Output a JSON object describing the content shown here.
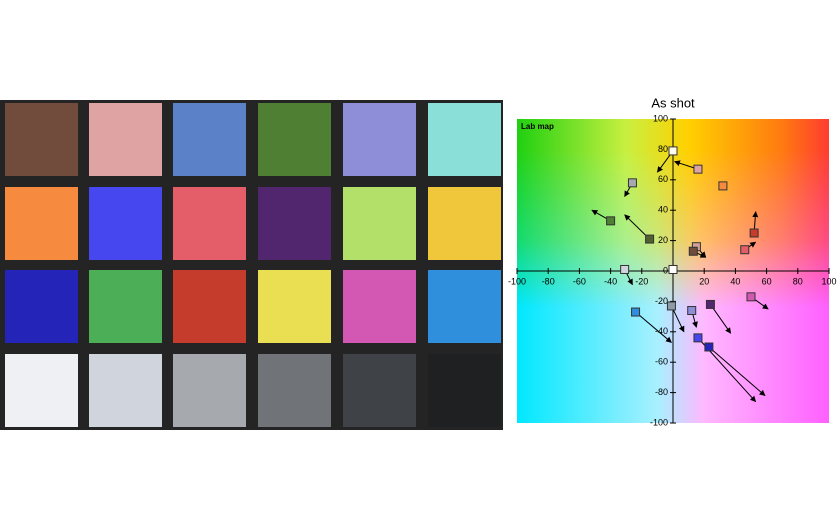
{
  "swatches": [
    "#714b3b",
    "#e0a3a3",
    "#5b82c8",
    "#4e7f32",
    "#8e8ed8",
    "#8adfd9",
    "#f68a3f",
    "#4747f0",
    "#e45e6a",
    "#51266e",
    "#b2e068",
    "#f0c73a",
    "#2424b8",
    "#4caf57",
    "#c63c2c",
    "#eadf52",
    "#d258b4",
    "#2f8fdc",
    "#eef0f4",
    "#d0d4dc",
    "#a6aaae",
    "#707378",
    "#3f4348",
    "#1e2022"
  ],
  "chart_data": {
    "type": "scatter",
    "title": "As shot",
    "label": "Lab map",
    "x": [
      0,
      16,
      -26,
      32,
      -40,
      -15,
      52,
      15,
      13,
      46,
      -31,
      0,
      50,
      -1,
      12,
      24,
      -24,
      16,
      23
    ],
    "values": [
      79,
      67,
      58,
      56,
      33,
      21,
      25,
      16,
      13,
      14,
      1,
      1,
      -17,
      -23,
      -26,
      -22,
      -27,
      -44,
      -50
    ],
    "target_x": [
      -10,
      1,
      -31,
      33,
      -52,
      -31,
      53,
      21,
      21,
      53,
      -26,
      null,
      61,
      7,
      15,
      37,
      -1,
      53,
      59
    ],
    "target_y": [
      65,
      72,
      49,
      55,
      40,
      37,
      39,
      9,
      9,
      19,
      -9,
      null,
      -25,
      -40,
      -37,
      -41,
      -47,
      -86,
      -82
    ],
    "colors": [
      "#fffdf0",
      "#e0a3a3",
      "#a6aaae",
      "#f68a3f",
      "#4e7f32",
      "#51602f",
      "#c63c2c",
      "#d0a09a",
      "#714b3b",
      "#e45e6a",
      "#d0d4dc",
      "#ffffff",
      "#d258b4",
      "#8e9aa8",
      "#8e8ed8",
      "#51266e",
      "#2f8fdc",
      "#4747f0",
      "#2424b8"
    ],
    "xlim": [
      -100,
      100
    ],
    "ylim": [
      -100,
      100
    ],
    "xticks": [
      -100,
      -80,
      -60,
      -40,
      -20,
      20,
      40,
      60,
      80,
      100
    ],
    "yticks": [
      -100,
      -80,
      -60,
      -40,
      -20,
      0,
      20,
      40,
      60,
      80,
      100
    ]
  }
}
